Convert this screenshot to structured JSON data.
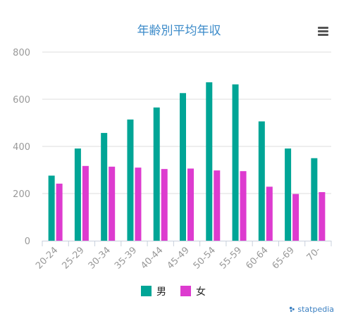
{
  "chart_data": {
    "type": "bar",
    "title": "年齢別平均年収",
    "categories": [
      "20-24",
      "25-29",
      "30-34",
      "35-39",
      "40-44",
      "45-49",
      "50-54",
      "55-59",
      "60-64",
      "65-69",
      "70-"
    ],
    "series": [
      {
        "name": "男",
        "color": "#00a596",
        "values": [
          276,
          391,
          457,
          514,
          565,
          626,
          672,
          663,
          506,
          391,
          350
        ]
      },
      {
        "name": "女",
        "color": "#dd3bcf",
        "values": [
          242,
          317,
          314,
          310,
          304,
          306,
          298,
          295,
          229,
          198,
          206
        ]
      }
    ],
    "ylim": [
      0,
      800
    ],
    "yticks": [
      0,
      200,
      400,
      600,
      800
    ],
    "xlabel": "",
    "ylabel": "",
    "grid": true,
    "legend_position": "bottom-center"
  },
  "ui": {
    "menu_icon": "hamburger-menu-icon",
    "credit_text": "statpedia",
    "credit_icon": "statpedia-logo-icon"
  }
}
